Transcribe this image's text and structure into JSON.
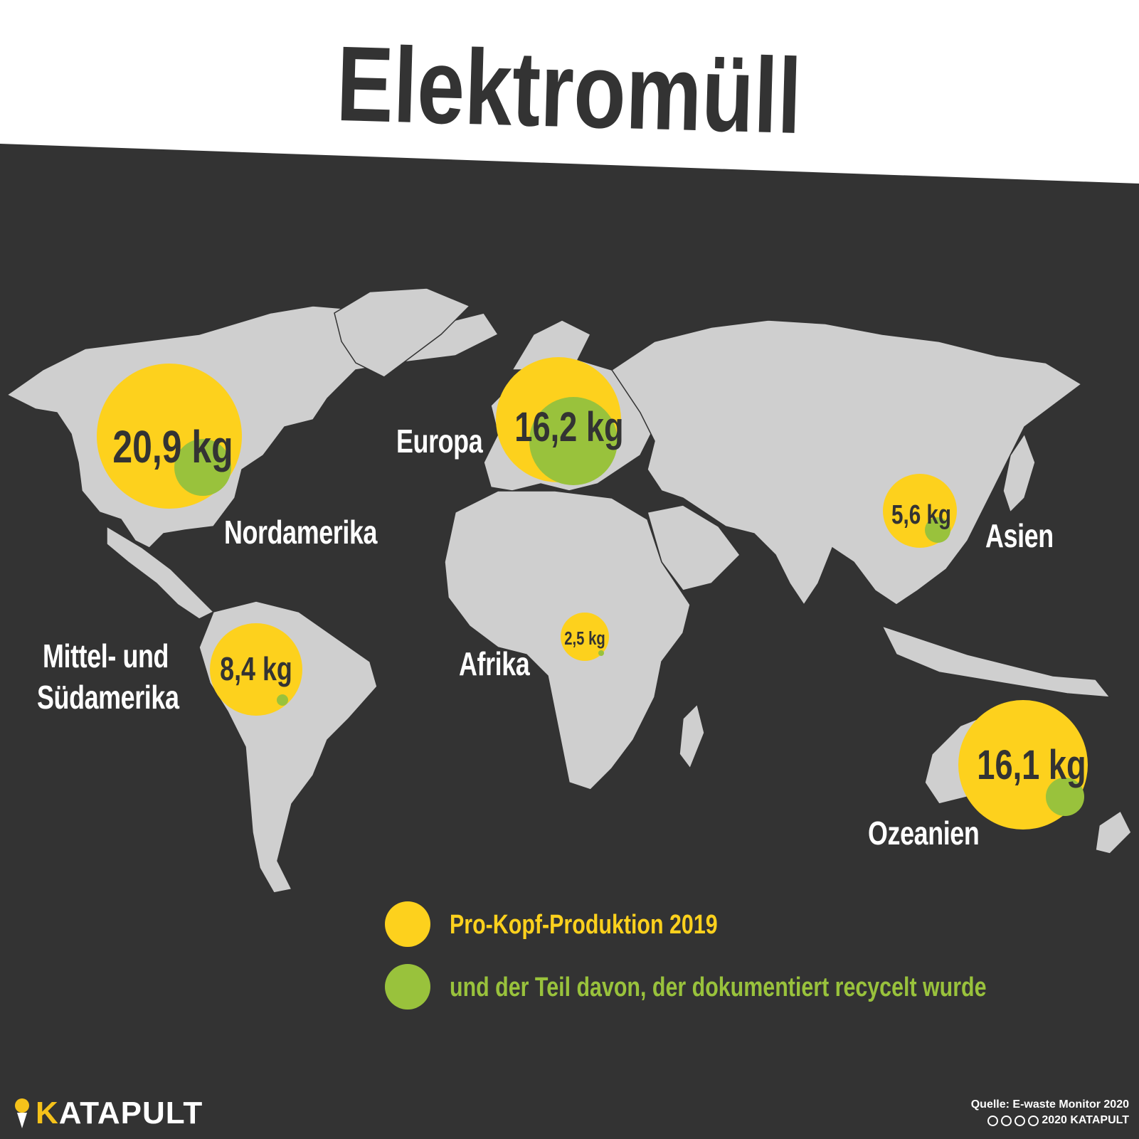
{
  "title": "Elektromüll",
  "regions": [
    {
      "id": "nordamerika",
      "name": "Nordamerika",
      "per_capita": "20,9 kg",
      "per_capita_kg": 20.9
    },
    {
      "id": "europa",
      "name": "Europa",
      "per_capita": "16,2 kg",
      "per_capita_kg": 16.2
    },
    {
      "id": "asien",
      "name": "Asien",
      "per_capita": "5,6 kg",
      "per_capita_kg": 5.6
    },
    {
      "id": "afrika",
      "name": "Afrika",
      "per_capita": "2,5 kg",
      "per_capita_kg": 2.5
    },
    {
      "id": "suedamerika",
      "name_line1": "Mittel- und",
      "name_line2": "Südamerika",
      "per_capita": "8,4 kg",
      "per_capita_kg": 8.4
    },
    {
      "id": "ozeanien",
      "name": "Ozeanien",
      "per_capita": "16,1 kg",
      "per_capita_kg": 16.1
    }
  ],
  "legend": {
    "production": "Pro-Kopf-Produktion 2019",
    "recycled": "und der Teil  davon, der dokumentiert recycelt wurde"
  },
  "logo": {
    "k": "K",
    "rest": "ATAPULT"
  },
  "source": "Quelle: E-waste Monitor 2020",
  "copyright": "2020 KATAPULT",
  "colors": {
    "background": "#333333",
    "land": "#cfcfcf",
    "production": "#fdd11d",
    "recycled": "#99c23c",
    "title_band": "#ffffff",
    "title_text": "#333333"
  }
}
